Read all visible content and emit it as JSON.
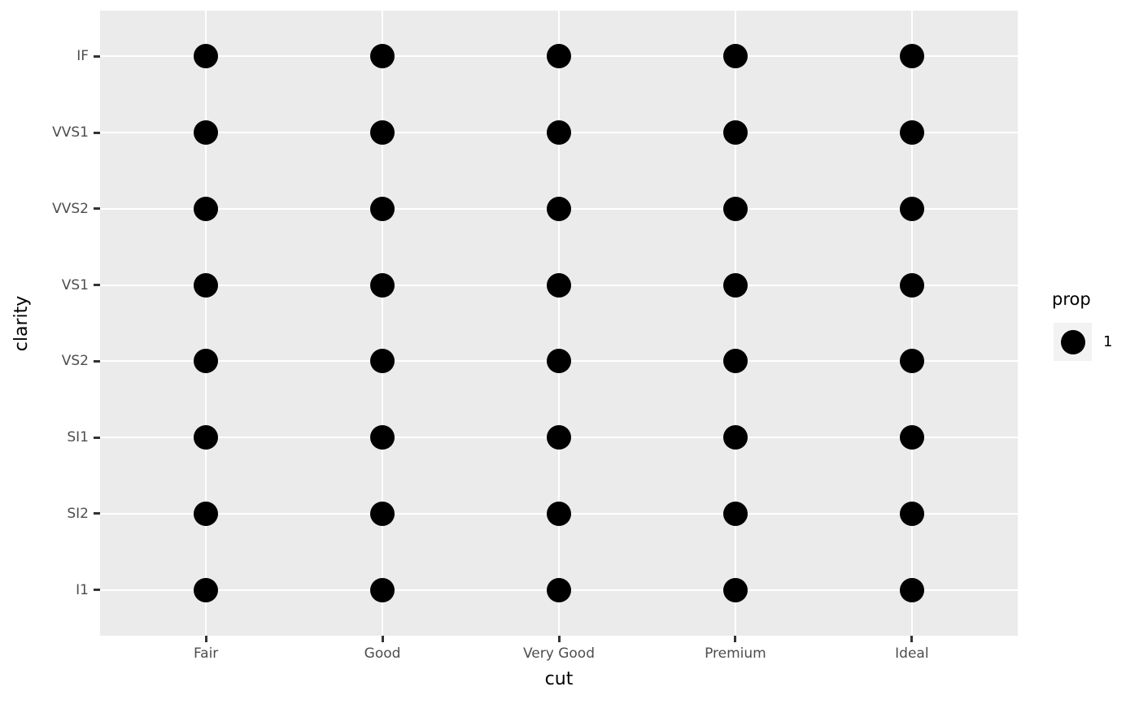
{
  "chart_data": {
    "type": "scatter",
    "title": "",
    "xlabel": "cut",
    "ylabel": "clarity",
    "x_categories": [
      "Fair",
      "Good",
      "Very Good",
      "Premium",
      "Ideal"
    ],
    "y_categories": [
      "IF",
      "VVS1",
      "VVS2",
      "VS1",
      "VS2",
      "SI1",
      "SI2",
      "I1"
    ],
    "size_variable": "prop",
    "values": [
      [
        1,
        1,
        1,
        1,
        1
      ],
      [
        1,
        1,
        1,
        1,
        1
      ],
      [
        1,
        1,
        1,
        1,
        1
      ],
      [
        1,
        1,
        1,
        1,
        1
      ],
      [
        1,
        1,
        1,
        1,
        1
      ],
      [
        1,
        1,
        1,
        1,
        1
      ],
      [
        1,
        1,
        1,
        1,
        1
      ],
      [
        1,
        1,
        1,
        1,
        1
      ]
    ],
    "grid": "major-on-white",
    "legend": {
      "title": "prop",
      "labels": [
        "1"
      ],
      "position": "right"
    }
  },
  "colors": {
    "background": "#FFFFFF",
    "panel_bg": "#EBEBEB",
    "gridline": "#FFFFFF",
    "point": "#000000",
    "tick_mark": "#333333",
    "tick_label": "#4D4D4D",
    "axis_title": "#000000",
    "legend_key_bg": "#F2F2F2",
    "legend_text": "#000000"
  }
}
